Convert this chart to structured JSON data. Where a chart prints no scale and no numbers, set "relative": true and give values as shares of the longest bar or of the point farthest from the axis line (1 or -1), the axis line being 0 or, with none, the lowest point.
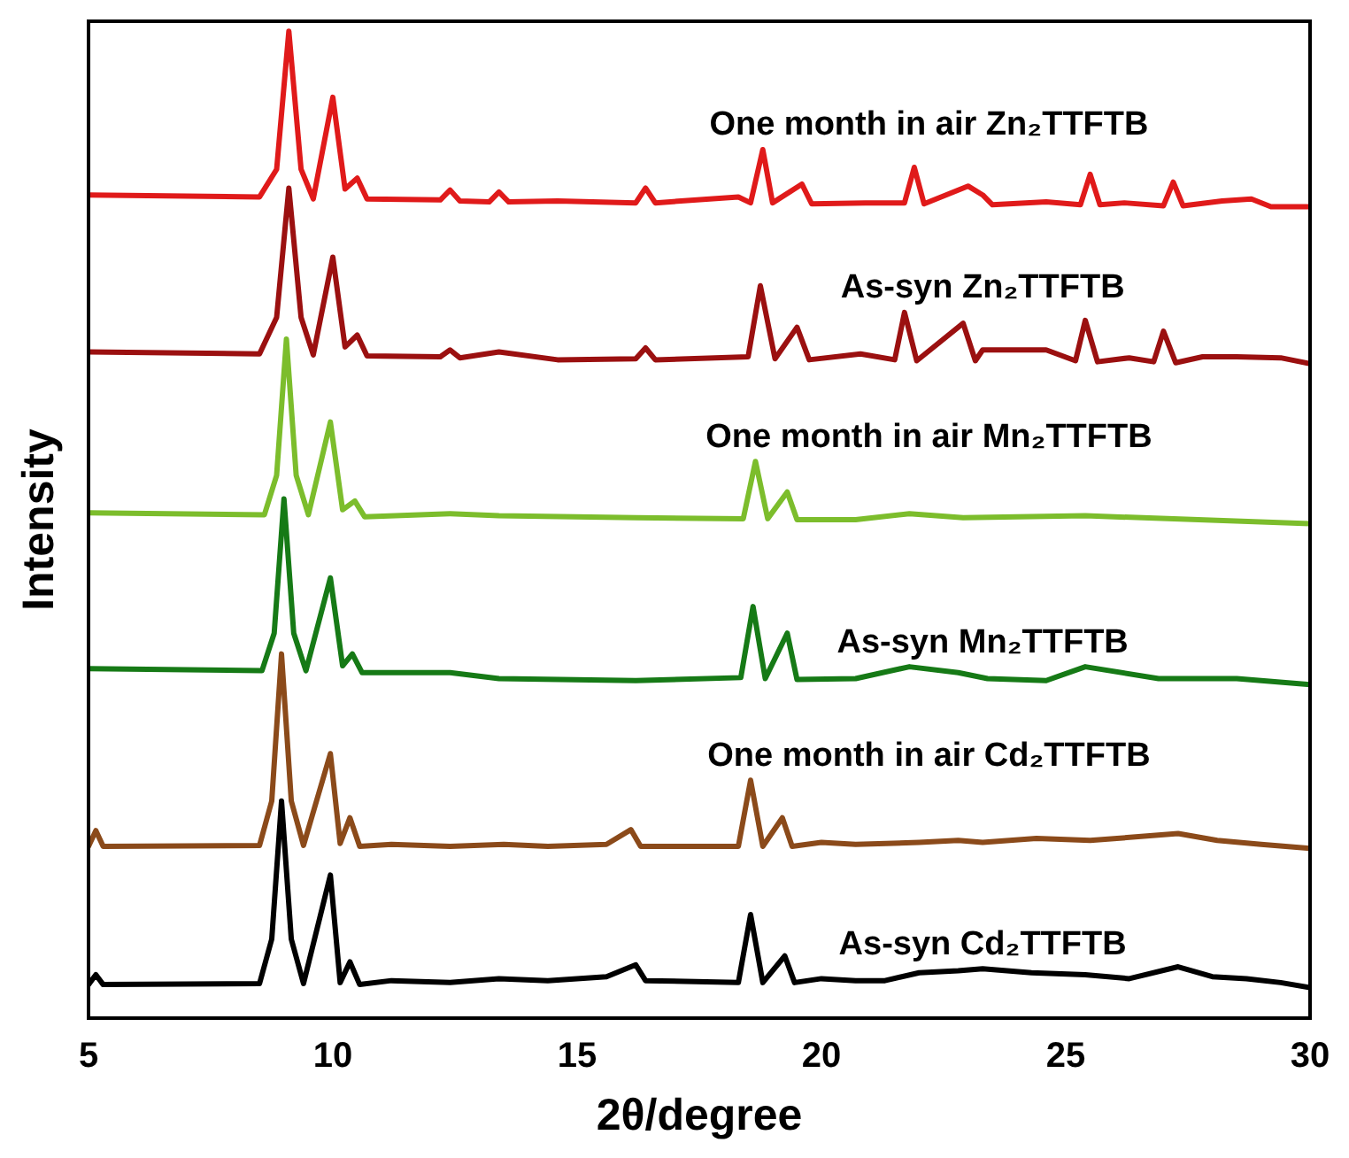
{
  "chart_data": {
    "type": "line",
    "relative": true,
    "xlabel": "2θ/degree",
    "ylabel": "Intensity",
    "xlim": [
      5,
      30
    ],
    "xticks": [
      5,
      10,
      15,
      20,
      25,
      30
    ],
    "marker": "none",
    "line_style": "solid",
    "series": [
      {
        "name": "One month in air Zn₂TTFTB",
        "color": "#e01a1a",
        "x": [
          5,
          8.5,
          8.85,
          9.1,
          9.35,
          9.6,
          10.0,
          10.25,
          10.5,
          10.7,
          12.2,
          12.4,
          12.6,
          13.2,
          13.4,
          13.6,
          14.6,
          16.2,
          16.4,
          16.6,
          18.3,
          18.55,
          18.8,
          19.0,
          19.6,
          19.8,
          20.9,
          21.7,
          21.9,
          22.1,
          23.0,
          23.3,
          23.5,
          24.6,
          25.3,
          25.5,
          25.7,
          26.2,
          27.0,
          27.2,
          27.4,
          28.2,
          28.8,
          29.2,
          30
        ],
        "values": [
          0.834,
          0.832,
          0.86,
          1.0,
          0.86,
          0.83,
          0.933,
          0.84,
          0.851,
          0.83,
          0.829,
          0.839,
          0.828,
          0.827,
          0.837,
          0.827,
          0.828,
          0.826,
          0.841,
          0.826,
          0.832,
          0.826,
          0.88,
          0.826,
          0.845,
          0.825,
          0.826,
          0.826,
          0.862,
          0.825,
          0.843,
          0.834,
          0.824,
          0.827,
          0.824,
          0.855,
          0.824,
          0.826,
          0.823,
          0.847,
          0.823,
          0.828,
          0.83,
          0.822,
          0.822
        ]
      },
      {
        "name": "As-syn Zn₂TTFTB",
        "color": "#9b1010",
        "x": [
          5,
          8.5,
          8.85,
          9.1,
          9.35,
          9.6,
          10.0,
          10.25,
          10.5,
          10.7,
          12.2,
          12.4,
          12.6,
          13.4,
          14.6,
          16.2,
          16.4,
          16.6,
          18.5,
          18.75,
          19.05,
          19.5,
          19.75,
          20.8,
          21.5,
          21.7,
          21.95,
          22.9,
          23.15,
          23.3,
          24.6,
          25.2,
          25.4,
          25.65,
          26.3,
          26.8,
          27.0,
          27.25,
          27.8,
          28.5,
          29.4,
          30
        ],
        "values": [
          0.675,
          0.673,
          0.71,
          0.841,
          0.71,
          0.672,
          0.771,
          0.68,
          0.692,
          0.671,
          0.67,
          0.677,
          0.669,
          0.675,
          0.667,
          0.668,
          0.679,
          0.667,
          0.67,
          0.742,
          0.668,
          0.7,
          0.667,
          0.673,
          0.667,
          0.715,
          0.666,
          0.704,
          0.666,
          0.677,
          0.677,
          0.666,
          0.707,
          0.665,
          0.669,
          0.665,
          0.696,
          0.664,
          0.67,
          0.67,
          0.669,
          0.663
        ]
      },
      {
        "name": "One month in air Mn₂TTFTB",
        "color": "#7cbd2c",
        "x": [
          5,
          8.6,
          8.85,
          9.05,
          9.25,
          9.5,
          9.95,
          10.2,
          10.45,
          10.65,
          12.4,
          13.4,
          16.2,
          18.4,
          18.65,
          18.9,
          19.3,
          19.5,
          20.7,
          21.8,
          22.9,
          25.4,
          30
        ],
        "values": [
          0.512,
          0.51,
          0.55,
          0.688,
          0.55,
          0.51,
          0.604,
          0.515,
          0.524,
          0.508,
          0.511,
          0.509,
          0.507,
          0.506,
          0.564,
          0.506,
          0.533,
          0.505,
          0.505,
          0.511,
          0.507,
          0.509,
          0.501
        ]
      },
      {
        "name": "As-syn Mn₂TTFTB",
        "color": "#167a16",
        "x": [
          5,
          8.55,
          8.8,
          9.0,
          9.2,
          9.45,
          9.95,
          10.2,
          10.4,
          10.6,
          12.4,
          13.4,
          16.2,
          18.35,
          18.6,
          18.85,
          19.3,
          19.5,
          20.7,
          21.8,
          22.8,
          23.4,
          24.6,
          25.4,
          26.9,
          28.5,
          30
        ],
        "values": [
          0.354,
          0.352,
          0.39,
          0.526,
          0.39,
          0.352,
          0.446,
          0.357,
          0.369,
          0.35,
          0.35,
          0.344,
          0.342,
          0.345,
          0.417,
          0.344,
          0.39,
          0.343,
          0.344,
          0.356,
          0.35,
          0.344,
          0.342,
          0.356,
          0.344,
          0.344,
          0.338
        ]
      },
      {
        "name": "One month in air Cd₂TTFTB",
        "color": "#8b4a1a",
        "x": [
          5,
          5.15,
          5.3,
          8.5,
          8.75,
          8.95,
          9.15,
          9.4,
          9.95,
          10.15,
          10.35,
          10.55,
          11.2,
          12.4,
          13.5,
          14.4,
          15.6,
          16.1,
          16.3,
          18.3,
          18.55,
          18.8,
          19.2,
          19.4,
          20.0,
          20.7,
          22.0,
          22.8,
          23.3,
          24.4,
          25.5,
          27.3,
          28.1,
          29.0,
          30
        ],
        "values": [
          0.174,
          0.19,
          0.174,
          0.175,
          0.22,
          0.369,
          0.22,
          0.175,
          0.268,
          0.177,
          0.203,
          0.174,
          0.176,
          0.174,
          0.176,
          0.174,
          0.176,
          0.191,
          0.174,
          0.174,
          0.241,
          0.174,
          0.203,
          0.174,
          0.178,
          0.176,
          0.178,
          0.18,
          0.178,
          0.182,
          0.18,
          0.187,
          0.18,
          0.176,
          0.172
        ]
      },
      {
        "name": "As-syn Cd₂TTFTB",
        "color": "#000000",
        "x": [
          5,
          5.15,
          5.3,
          8.5,
          8.75,
          8.95,
          9.15,
          9.4,
          9.95,
          10.15,
          10.35,
          10.55,
          11.2,
          12.4,
          13.4,
          14.4,
          15.6,
          16.2,
          16.4,
          18.3,
          18.55,
          18.8,
          19.25,
          19.45,
          20.0,
          20.7,
          21.3,
          22.0,
          22.8,
          23.3,
          24.3,
          25.4,
          26.3,
          27.3,
          28.0,
          28.7,
          29.4,
          30
        ],
        "values": [
          0.034,
          0.044,
          0.034,
          0.035,
          0.08,
          0.22,
          0.08,
          0.035,
          0.145,
          0.036,
          0.057,
          0.034,
          0.038,
          0.036,
          0.04,
          0.038,
          0.042,
          0.054,
          0.038,
          0.036,
          0.105,
          0.036,
          0.063,
          0.036,
          0.04,
          0.038,
          0.038,
          0.046,
          0.048,
          0.05,
          0.046,
          0.044,
          0.04,
          0.052,
          0.042,
          0.04,
          0.036,
          0.031
        ]
      }
    ]
  }
}
